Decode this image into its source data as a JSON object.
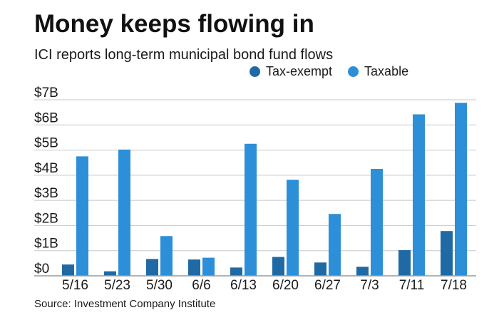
{
  "title": "Money keeps flowing in",
  "subtitle": "ICI reports long-term municipal bond fund flows",
  "source": "Source: Investment Company Institute",
  "colors": {
    "tax_exempt": "#1f6aa5",
    "taxable": "#2d8fd8",
    "grid": "#c8c8c8",
    "baseline": "#9a9a9a"
  },
  "legend": [
    {
      "label": "Tax-exempt",
      "color": "#1f6aa5"
    },
    {
      "label": "Taxable",
      "color": "#2d8fd8"
    }
  ],
  "chart_data": {
    "type": "bar",
    "title": "Money keeps flowing in",
    "subtitle": "ICI reports long-term municipal bond fund flows",
    "categories": [
      "5/16",
      "5/23",
      "5/30",
      "6/6",
      "6/13",
      "6/20",
      "6/27",
      "7/3",
      "7/11",
      "7/18"
    ],
    "series": [
      {
        "name": "Tax-exempt",
        "values": [
          0.45,
          0.18,
          0.67,
          0.65,
          0.33,
          0.75,
          0.53,
          0.36,
          1.02,
          1.78
        ]
      },
      {
        "name": "Taxable",
        "values": [
          4.75,
          5.02,
          1.58,
          0.72,
          5.25,
          3.82,
          2.46,
          4.25,
          6.42,
          6.88
        ]
      }
    ],
    "units": "billions of dollars",
    "yticks": [
      {
        "value": 0,
        "label": "$0"
      },
      {
        "value": 1,
        "label": "$1B"
      },
      {
        "value": 2,
        "label": "$2B"
      },
      {
        "value": 3,
        "label": "$3B"
      },
      {
        "value": 4,
        "label": "$4B"
      },
      {
        "value": 5,
        "label": "$5B"
      },
      {
        "value": 6,
        "label": "$6B"
      },
      {
        "value": 7,
        "label": "$7B"
      }
    ],
    "ylim": [
      0,
      7
    ],
    "xlabel": "",
    "ylabel": "",
    "grid": true,
    "legend_position": "top-right"
  }
}
